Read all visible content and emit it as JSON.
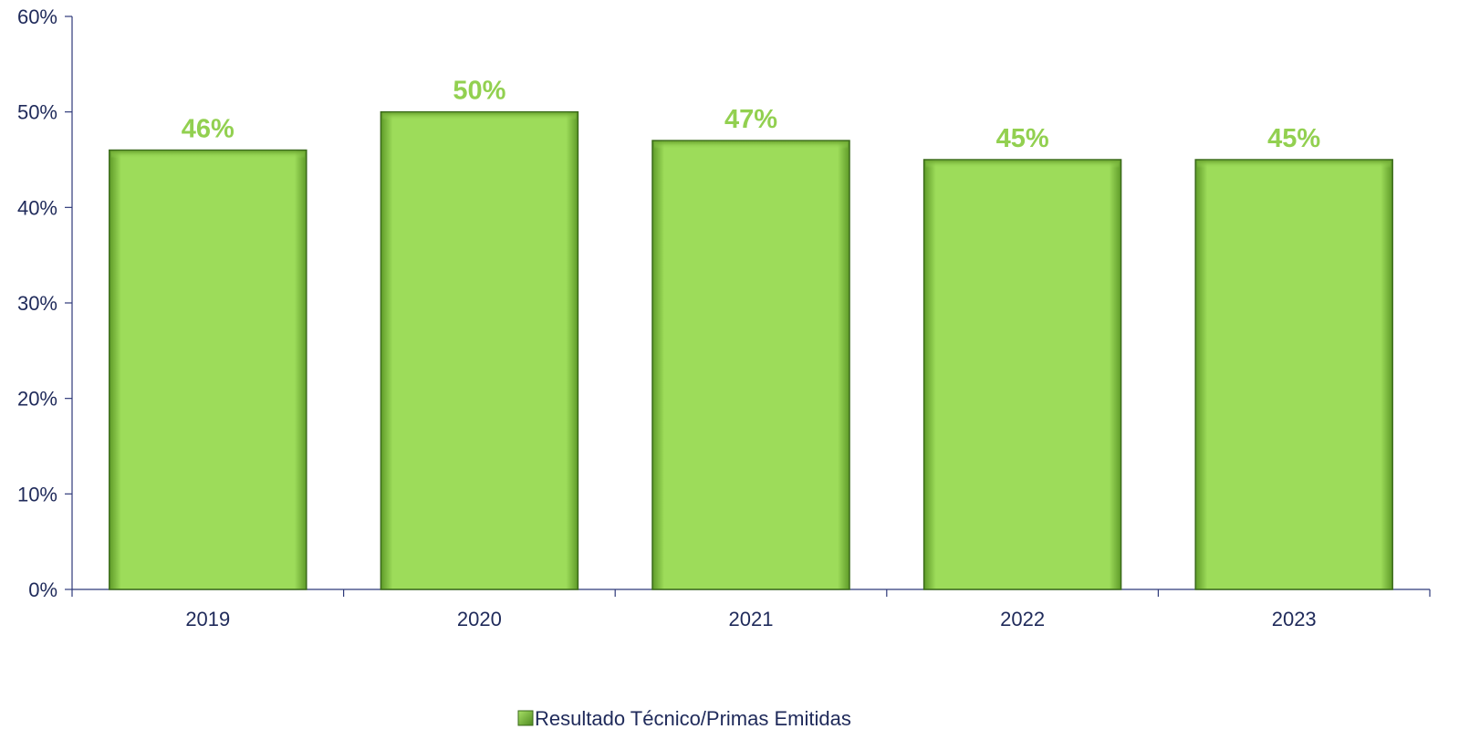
{
  "chart_data": {
    "type": "bar",
    "categories": [
      "2019",
      "2020",
      "2021",
      "2022",
      "2023"
    ],
    "series": [
      {
        "name": "Resultado Técnico/Primas Emitidas",
        "values": [
          46,
          50,
          47,
          45,
          45
        ],
        "value_labels": [
          "46%",
          "50%",
          "47%",
          "45%",
          "45%"
        ]
      }
    ],
    "ylim": [
      0,
      60
    ],
    "yticks": [
      0,
      10,
      20,
      30,
      40,
      50,
      60
    ],
    "ytick_labels": [
      "0%",
      "10%",
      "20%",
      "30%",
      "40%",
      "50%",
      "60%"
    ],
    "title": "",
    "xlabel": "",
    "ylabel": "",
    "grid": false,
    "legend_position": "bottom",
    "colors": {
      "bar": "#9ddc5a",
      "bar_edge": "#3a6a1a",
      "data_label": "#92d050",
      "axis": "#2f3a7a",
      "text": "#1f2a5a"
    }
  }
}
